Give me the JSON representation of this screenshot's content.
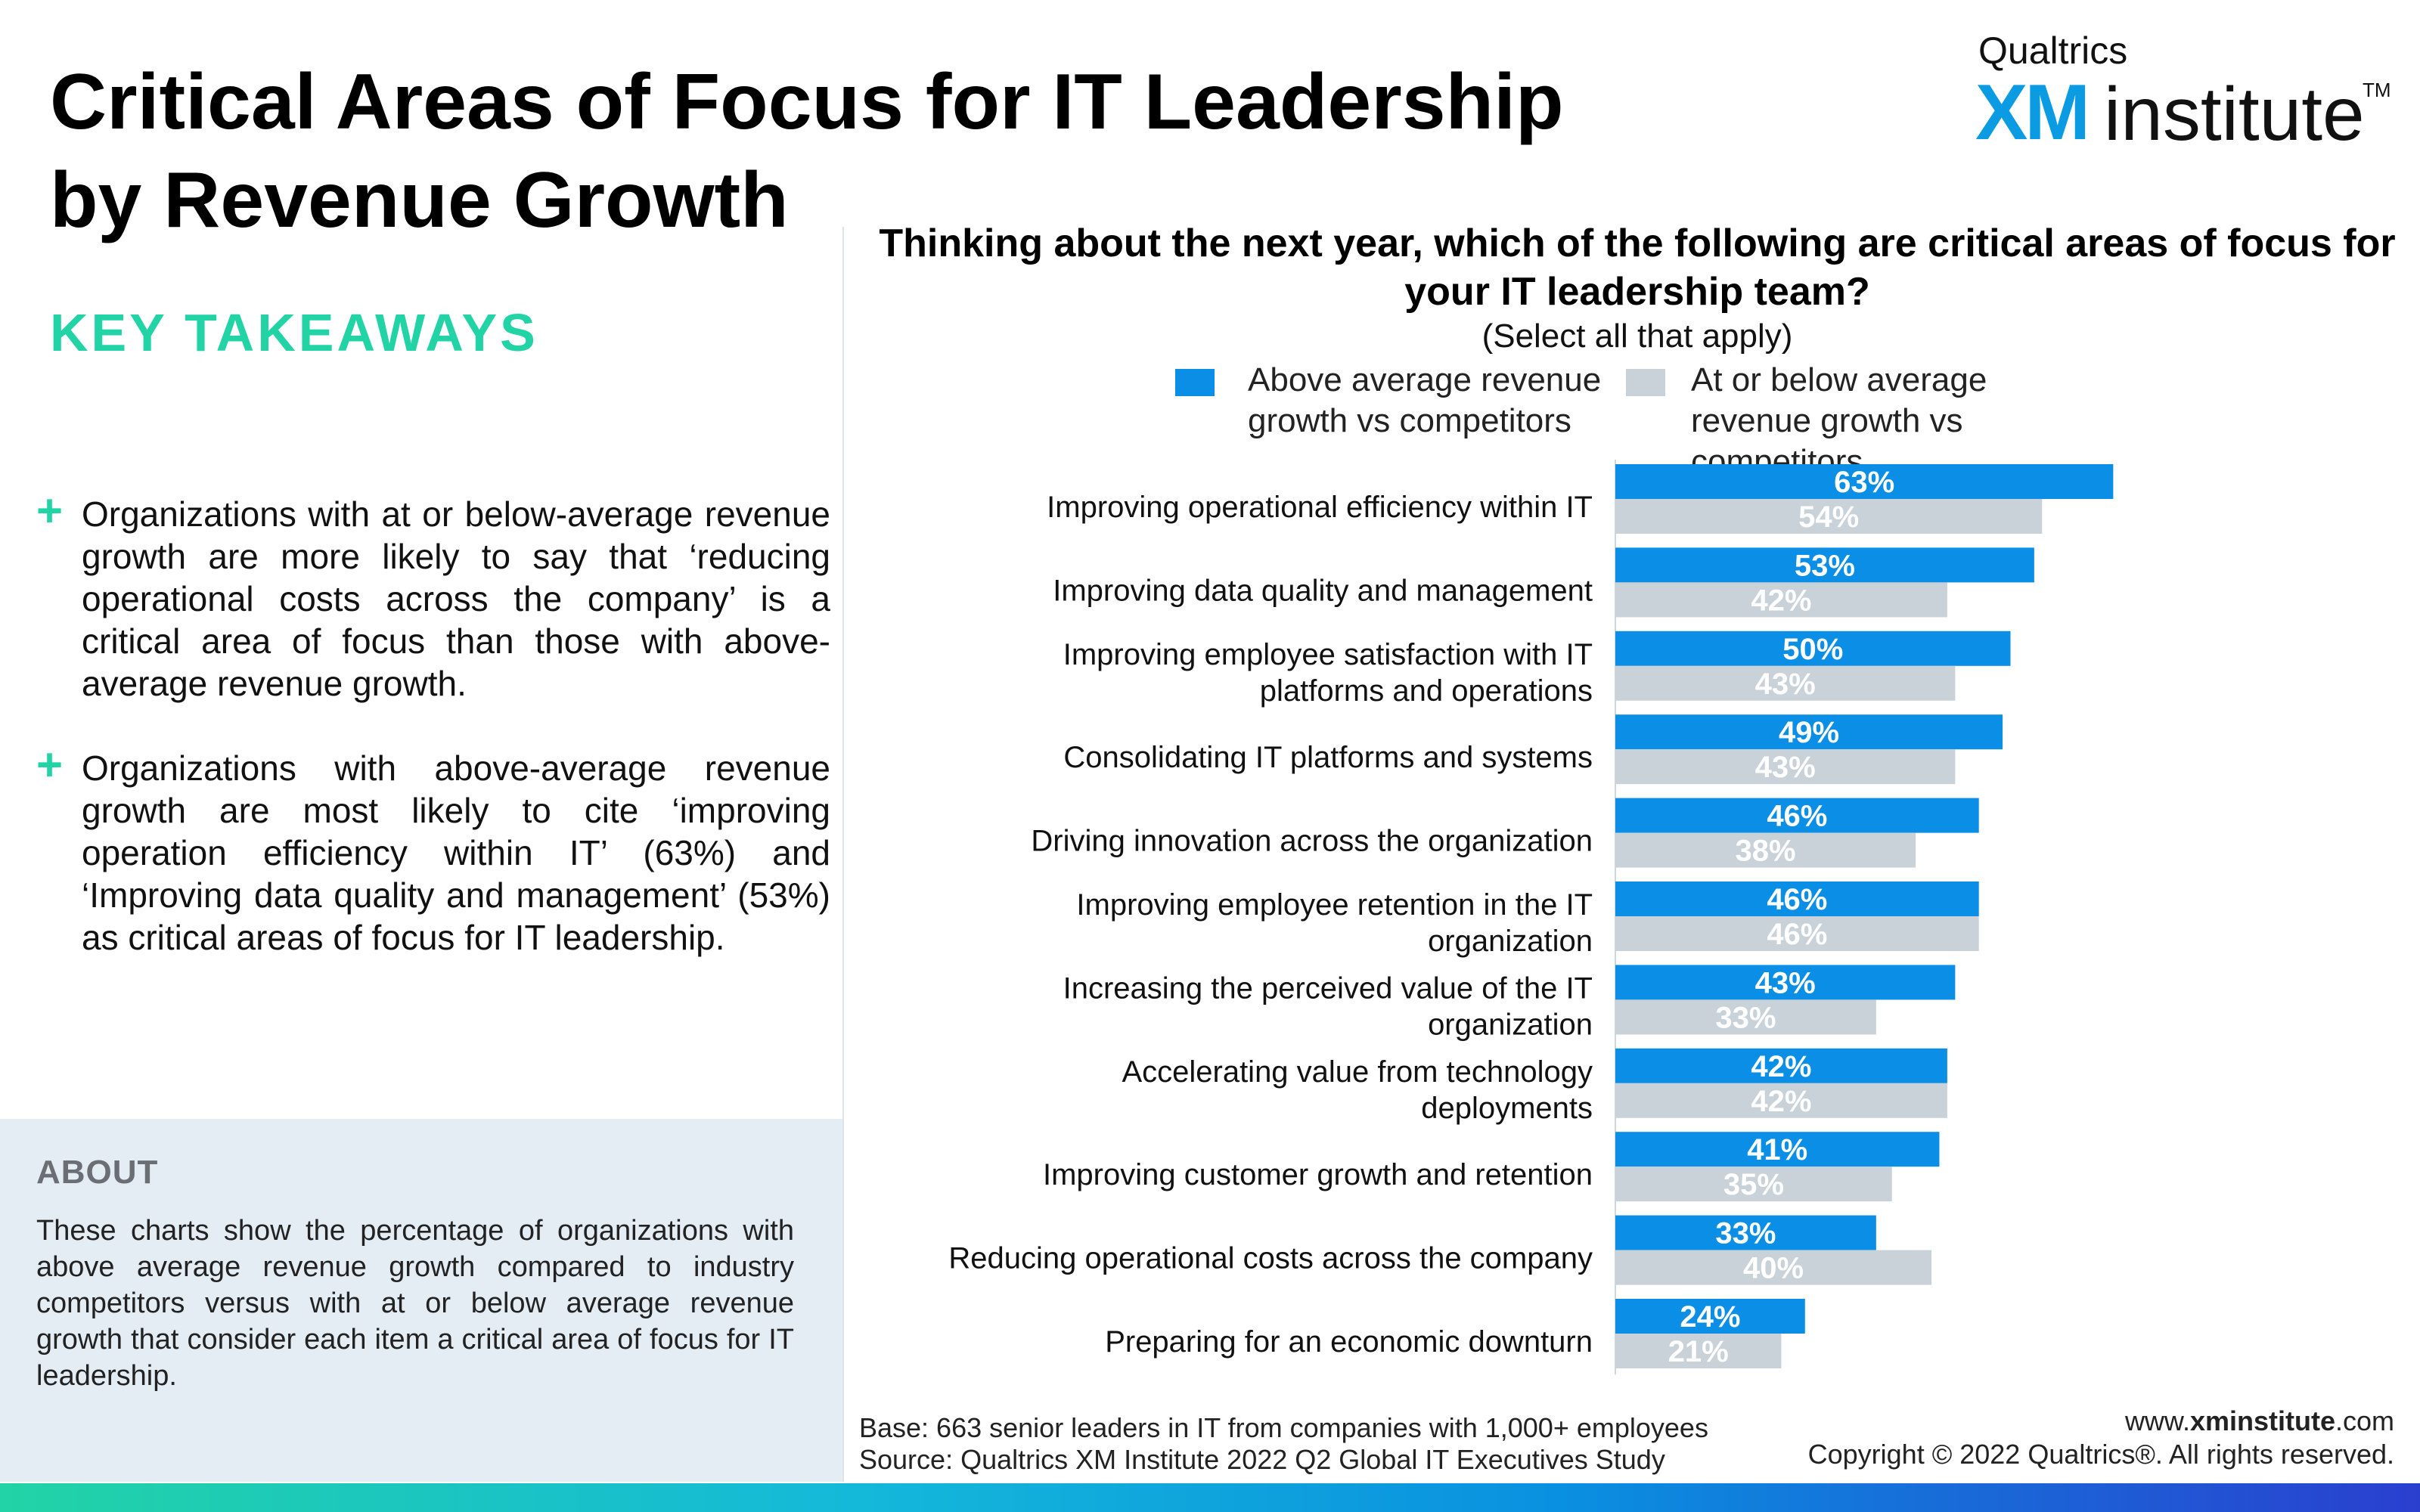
{
  "header": {
    "title_line1": "Critical Areas of Focus for IT Leadership",
    "title_line2": "by Revenue Growth"
  },
  "logo": {
    "brand": "Qualtrics",
    "xm": "XM",
    "institute": "institute",
    "tm": "TM",
    "xm_color": "#0a9be3"
  },
  "takeaways": {
    "heading": "KEY TAKEAWAYS",
    "plus": "+",
    "items": [
      "Organizations with at or below-average revenue growth are more likely to say that ‘reducing operational costs across the company’ is a critical area of focus than those with above-average revenue growth.",
      "Organizations with above-average revenue growth are most likely to cite ‘improving operation efficiency within IT’ (63%) and ‘Improving data quality and management’ (53%) as critical areas of focus for IT leadership."
    ]
  },
  "about": {
    "heading": "ABOUT",
    "text": "These charts show the percentage of organizations with above average revenue growth compared to industry competitors versus with at or below average revenue growth that consider each item a critical area of focus for IT leadership."
  },
  "chart_data": {
    "type": "bar",
    "orientation": "horizontal",
    "title": "Thinking about the next year, which of the following are critical areas of focus for your IT leadership team?",
    "subtitle": "(Select all that apply)",
    "legend_placement": "top",
    "value_suffix": "%",
    "xlim": [
      0,
      100
    ],
    "grid": false,
    "categories": [
      "Improving operational efficiency within IT",
      "Improving data quality and management",
      "Improving employee satisfaction with IT platforms and operations",
      "Consolidating IT platforms and systems",
      "Driving innovation across the organization",
      "Improving employee retention in the IT organization",
      "Increasing the perceived value of the IT organization",
      "Accelerating value from technology deployments",
      "Improving customer growth and retention",
      "Reducing operational costs across the company",
      "Preparing for an economic downturn"
    ],
    "series": [
      {
        "name": "Above average revenue growth vs competitors",
        "color": "#0a8ee6",
        "values": [
          63,
          53,
          50,
          49,
          46,
          46,
          43,
          42,
          41,
          33,
          24
        ]
      },
      {
        "name": "At or below average revenue growth vs competitors",
        "color": "#cad2d9",
        "values": [
          54,
          42,
          43,
          43,
          38,
          46,
          33,
          42,
          35,
          40,
          21
        ]
      }
    ]
  },
  "footer": {
    "base": "Base: 663 senior leaders in IT from companies with 1,000+ employees",
    "source": "Source: Qualtrics XM Institute 2022 Q2 Global IT Executives Study",
    "site_prefix": "www.",
    "site_bold": "xminstitute",
    "site_suffix": ".com",
    "copyright": "Copyright © 2022 Qualtrics®. All rights reserved."
  }
}
